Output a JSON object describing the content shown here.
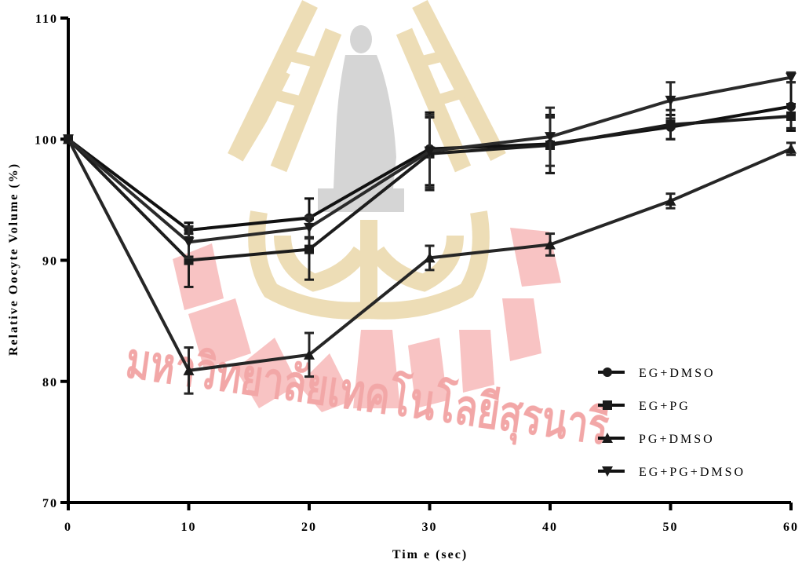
{
  "chart_data": {
    "type": "line",
    "title": "",
    "xlabel": "Tim e (sec)",
    "ylabel": "Relative Oocyte Volume (%)",
    "xlim": [
      0,
      60
    ],
    "ylim": [
      70,
      110
    ],
    "xticks": [
      0,
      10,
      20,
      30,
      40,
      50,
      60
    ],
    "yticks": [
      70,
      80,
      90,
      100,
      110
    ],
    "xtick_labels": [
      "0",
      "10",
      "20",
      "30",
      "40",
      "50",
      "60"
    ],
    "ytick_labels": [
      "70",
      "80",
      "90",
      "100",
      "110"
    ],
    "grid": false,
    "legend_position": "bottom-right",
    "x": [
      0,
      10,
      20,
      30,
      40,
      50,
      60
    ],
    "series": [
      {
        "name": "EG+DMSO",
        "marker": "circle",
        "values": [
          100,
          92.5,
          93.5,
          99.2,
          99.6,
          101.0,
          102.7
        ],
        "errors": [
          0,
          0.6,
          1.6,
          3.0,
          2.4,
          1.0,
          2.0
        ]
      },
      {
        "name": "EG+PG",
        "marker": "square",
        "values": [
          100,
          90.0,
          90.9,
          98.8,
          99.5,
          101.2,
          101.9
        ],
        "errors": [
          0,
          2.2,
          2.5,
          3.0,
          2.3,
          1.2,
          1.0
        ]
      },
      {
        "name": "PG+DMSO",
        "marker": "triangle-up",
        "values": [
          100,
          80.9,
          82.2,
          90.2,
          91.3,
          94.9,
          99.2
        ],
        "errors": [
          0,
          1.9,
          1.8,
          1.0,
          0.9,
          0.6,
          0.5
        ]
      },
      {
        "name": "EG+PG+DMSO",
        "marker": "triangle-down",
        "values": [
          100,
          91.5,
          92.7,
          99.0,
          100.2,
          103.2,
          105.1
        ],
        "errors": [
          0,
          1.3,
          0.9,
          3.0,
          2.4,
          1.5,
          0.4
        ]
      }
    ],
    "watermark": {
      "text": "มหาวิทยาลัยเทคโนโลยีสุรนารี",
      "colors": {
        "gold": "#e9d6a8",
        "gray": "#cfcfcf",
        "red": "#f6b5b5"
      }
    }
  }
}
